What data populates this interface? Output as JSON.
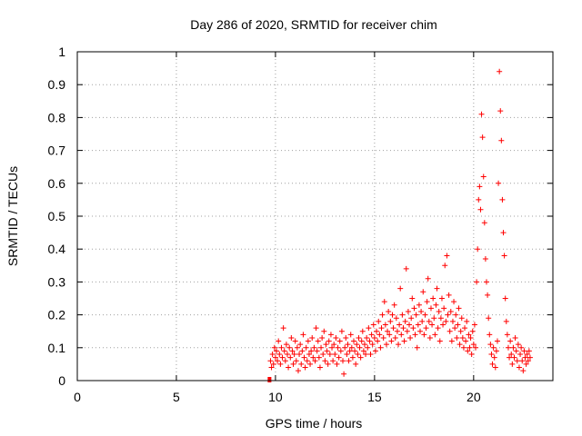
{
  "chart_data": {
    "type": "scatter",
    "title": "Day 286 of 2020, SRMTID for receiver chim",
    "xlabel": "GPS time / hours",
    "ylabel": "SRMTID / TECUs",
    "xlim": [
      0,
      24
    ],
    "ylim": [
      0,
      1
    ],
    "x_ticks": [
      0,
      5,
      10,
      15,
      20
    ],
    "x_tick_labels": [
      "0",
      "5",
      "10",
      "15",
      "20"
    ],
    "y_ticks": [
      0,
      0.1,
      0.2,
      0.3,
      0.4,
      0.5,
      0.6,
      0.7,
      0.8,
      0.9,
      1
    ],
    "y_tick_labels": [
      "0",
      "0.1",
      "0.2",
      "0.3",
      "0.4",
      "0.5",
      "0.6",
      "0.7",
      "0.8",
      "0.9",
      "1"
    ],
    "grid": true,
    "marker": "+",
    "color": "#ff0000",
    "zero_marker": {
      "x": 9.7,
      "y": 0,
      "color": "#ff0000"
    },
    "series": [
      {
        "name": "SRMTID",
        "points": [
          [
            9.75,
            0.06
          ],
          [
            9.8,
            0.04
          ],
          [
            9.85,
            0.08
          ],
          [
            9.9,
            0.05
          ],
          [
            9.95,
            0.1
          ],
          [
            10.0,
            0.07
          ],
          [
            10.05,
            0.09
          ],
          [
            10.1,
            0.06
          ],
          [
            10.15,
            0.12
          ],
          [
            10.2,
            0.08
          ],
          [
            10.25,
            0.05
          ],
          [
            10.3,
            0.1
          ],
          [
            10.35,
            0.07
          ],
          [
            10.4,
            0.16
          ],
          [
            10.45,
            0.09
          ],
          [
            10.5,
            0.06
          ],
          [
            10.55,
            0.11
          ],
          [
            10.6,
            0.08
          ],
          [
            10.65,
            0.04
          ],
          [
            10.7,
            0.1
          ],
          [
            10.75,
            0.07
          ],
          [
            10.8,
            0.13
          ],
          [
            10.85,
            0.09
          ],
          [
            10.9,
            0.05
          ],
          [
            10.95,
            0.08
          ],
          [
            11.0,
            0.12
          ],
          [
            11.05,
            0.06
          ],
          [
            11.1,
            0.1
          ],
          [
            11.15,
            0.03
          ],
          [
            11.2,
            0.08
          ],
          [
            11.25,
            0.11
          ],
          [
            11.3,
            0.05
          ],
          [
            11.35,
            0.09
          ],
          [
            11.4,
            0.14
          ],
          [
            11.45,
            0.07
          ],
          [
            11.5,
            0.04
          ],
          [
            11.55,
            0.1
          ],
          [
            11.6,
            0.06
          ],
          [
            11.65,
            0.12
          ],
          [
            11.7,
            0.08
          ],
          [
            11.75,
            0.05
          ],
          [
            11.8,
            0.09
          ],
          [
            11.85,
            0.13
          ],
          [
            11.9,
            0.07
          ],
          [
            11.95,
            0.1
          ],
          [
            12.0,
            0.06
          ],
          [
            12.05,
            0.16
          ],
          [
            12.1,
            0.09
          ],
          [
            12.15,
            0.12
          ],
          [
            12.2,
            0.07
          ],
          [
            12.25,
            0.04
          ],
          [
            12.3,
            0.1
          ],
          [
            12.35,
            0.13
          ],
          [
            12.4,
            0.08
          ],
          [
            12.45,
            0.15
          ],
          [
            12.5,
            0.06
          ],
          [
            12.55,
            0.11
          ],
          [
            12.6,
            0.09
          ],
          [
            12.65,
            0.05
          ],
          [
            12.7,
            0.12
          ],
          [
            12.75,
            0.08
          ],
          [
            12.8,
            0.14
          ],
          [
            12.85,
            0.1
          ],
          [
            12.9,
            0.06
          ],
          [
            12.95,
            0.11
          ],
          [
            13.0,
            0.08
          ],
          [
            13.05,
            0.13
          ],
          [
            13.1,
            0.05
          ],
          [
            13.15,
            0.1
          ],
          [
            13.2,
            0.07
          ],
          [
            13.25,
            0.12
          ],
          [
            13.3,
            0.09
          ],
          [
            13.35,
            0.15
          ],
          [
            13.4,
            0.06
          ],
          [
            13.45,
            0.02
          ],
          [
            13.5,
            0.1
          ],
          [
            13.55,
            0.13
          ],
          [
            13.6,
            0.08
          ],
          [
            13.65,
            0.11
          ],
          [
            13.7,
            0.06
          ],
          [
            13.75,
            0.09
          ],
          [
            13.8,
            0.14
          ],
          [
            13.85,
            0.1
          ],
          [
            13.9,
            0.07
          ],
          [
            13.95,
            0.12
          ],
          [
            14.0,
            0.09
          ],
          [
            14.05,
            0.05
          ],
          [
            14.1,
            0.11
          ],
          [
            14.15,
            0.08
          ],
          [
            14.2,
            0.13
          ],
          [
            14.25,
            0.1
          ],
          [
            14.3,
            0.07
          ],
          [
            14.35,
            0.12
          ],
          [
            14.4,
            0.15
          ],
          [
            14.45,
            0.09
          ],
          [
            14.5,
            0.11
          ],
          [
            14.55,
            0.08
          ],
          [
            14.6,
            0.13
          ],
          [
            14.65,
            0.1
          ],
          [
            14.7,
            0.16
          ],
          [
            14.75,
            0.12
          ],
          [
            14.8,
            0.08
          ],
          [
            14.85,
            0.14
          ],
          [
            14.9,
            0.11
          ],
          [
            14.95,
            0.17
          ],
          [
            15.0,
            0.13
          ],
          [
            15.05,
            0.09
          ],
          [
            15.1,
            0.15
          ],
          [
            15.15,
            0.12
          ],
          [
            15.2,
            0.18
          ],
          [
            15.25,
            0.14
          ],
          [
            15.3,
            0.1
          ],
          [
            15.35,
            0.16
          ],
          [
            15.4,
            0.2
          ],
          [
            15.45,
            0.13
          ],
          [
            15.5,
            0.24
          ],
          [
            15.55,
            0.17
          ],
          [
            15.6,
            0.11
          ],
          [
            15.65,
            0.15
          ],
          [
            15.7,
            0.21
          ],
          [
            15.75,
            0.14
          ],
          [
            15.8,
            0.18
          ],
          [
            15.85,
            0.12
          ],
          [
            15.9,
            0.2
          ],
          [
            15.95,
            0.16
          ],
          [
            16.0,
            0.23
          ],
          [
            16.05,
            0.13
          ],
          [
            16.1,
            0.19
          ],
          [
            16.15,
            0.15
          ],
          [
            16.2,
            0.11
          ],
          [
            16.25,
            0.17
          ],
          [
            16.3,
            0.28
          ],
          [
            16.35,
            0.14
          ],
          [
            16.4,
            0.2
          ],
          [
            16.45,
            0.16
          ],
          [
            16.5,
            0.12
          ],
          [
            16.55,
            0.18
          ],
          [
            16.6,
            0.34
          ],
          [
            16.65,
            0.15
          ],
          [
            16.7,
            0.21
          ],
          [
            16.75,
            0.17
          ],
          [
            16.8,
            0.13
          ],
          [
            16.85,
            0.19
          ],
          [
            16.9,
            0.25
          ],
          [
            16.95,
            0.16
          ],
          [
            17.0,
            0.22
          ],
          [
            17.05,
            0.14
          ],
          [
            17.1,
            0.2
          ],
          [
            17.15,
            0.1
          ],
          [
            17.2,
            0.17
          ],
          [
            17.25,
            0.23
          ],
          [
            17.3,
            0.15
          ],
          [
            17.35,
            0.21
          ],
          [
            17.4,
            0.18
          ],
          [
            17.45,
            0.27
          ],
          [
            17.5,
            0.14
          ],
          [
            17.55,
            0.2
          ],
          [
            17.6,
            0.16
          ],
          [
            17.65,
            0.24
          ],
          [
            17.7,
            0.31
          ],
          [
            17.75,
            0.18
          ],
          [
            17.8,
            0.13
          ],
          [
            17.85,
            0.22
          ],
          [
            17.9,
            0.17
          ],
          [
            17.95,
            0.25
          ],
          [
            18.0,
            0.19
          ],
          [
            18.05,
            0.14
          ],
          [
            18.1,
            0.23
          ],
          [
            18.15,
            0.28
          ],
          [
            18.2,
            0.16
          ],
          [
            18.25,
            0.21
          ],
          [
            18.3,
            0.12
          ],
          [
            18.35,
            0.19
          ],
          [
            18.4,
            0.25
          ],
          [
            18.45,
            0.17
          ],
          [
            18.5,
            0.22
          ],
          [
            18.55,
            0.35
          ],
          [
            18.6,
            0.18
          ],
          [
            18.65,
            0.38
          ],
          [
            18.7,
            0.2
          ],
          [
            18.75,
            0.26
          ],
          [
            18.8,
            0.15
          ],
          [
            18.85,
            0.21
          ],
          [
            18.9,
            0.12
          ],
          [
            18.95,
            0.18
          ],
          [
            19.0,
            0.24
          ],
          [
            19.05,
            0.16
          ],
          [
            19.1,
            0.2
          ],
          [
            19.15,
            0.13
          ],
          [
            19.2,
            0.17
          ],
          [
            19.25,
            0.22
          ],
          [
            19.3,
            0.11
          ],
          [
            19.35,
            0.15
          ],
          [
            19.4,
            0.19
          ],
          [
            19.45,
            0.13
          ],
          [
            19.5,
            0.1
          ],
          [
            19.55,
            0.16
          ],
          [
            19.6,
            0.12
          ],
          [
            19.65,
            0.18
          ],
          [
            19.7,
            0.09
          ],
          [
            19.75,
            0.14
          ],
          [
            19.8,
            0.1
          ],
          [
            19.85,
            0.13
          ],
          [
            19.9,
            0.08
          ],
          [
            19.95,
            0.15
          ],
          [
            20.0,
            0.11
          ],
          [
            20.05,
            0.17
          ],
          [
            20.1,
            0.1
          ],
          [
            20.15,
            0.3
          ],
          [
            20.2,
            0.4
          ],
          [
            20.25,
            0.55
          ],
          [
            20.3,
            0.59
          ],
          [
            20.35,
            0.52
          ],
          [
            20.4,
            0.81
          ],
          [
            20.45,
            0.74
          ],
          [
            20.5,
            0.62
          ],
          [
            20.55,
            0.48
          ],
          [
            20.6,
            0.37
          ],
          [
            20.65,
            0.3
          ],
          [
            20.7,
            0.26
          ],
          [
            20.75,
            0.19
          ],
          [
            20.8,
            0.14
          ],
          [
            20.85,
            0.11
          ],
          [
            20.9,
            0.08
          ],
          [
            20.95,
            0.05
          ],
          [
            21.0,
            0.1
          ],
          [
            21.05,
            0.07
          ],
          [
            21.1,
            0.04
          ],
          [
            21.15,
            0.09
          ],
          [
            21.2,
            0.12
          ],
          [
            21.25,
            0.6
          ],
          [
            21.3,
            0.94
          ],
          [
            21.35,
            0.82
          ],
          [
            21.4,
            0.73
          ],
          [
            21.45,
            0.55
          ],
          [
            21.5,
            0.45
          ],
          [
            21.55,
            0.38
          ],
          [
            21.6,
            0.25
          ],
          [
            21.65,
            0.18
          ],
          [
            21.7,
            0.14
          ],
          [
            21.75,
            0.1
          ],
          [
            21.8,
            0.07
          ],
          [
            21.85,
            0.12
          ],
          [
            21.9,
            0.08
          ],
          [
            21.95,
            0.05
          ],
          [
            22.0,
            0.1
          ],
          [
            22.05,
            0.07
          ],
          [
            22.1,
            0.13
          ],
          [
            22.15,
            0.09
          ],
          [
            22.2,
            0.06
          ],
          [
            22.25,
            0.11
          ],
          [
            22.3,
            0.04
          ],
          [
            22.35,
            0.08
          ],
          [
            22.4,
            0.1
          ],
          [
            22.45,
            0.06
          ],
          [
            22.5,
            0.03
          ],
          [
            22.55,
            0.09
          ],
          [
            22.6,
            0.07
          ],
          [
            22.65,
            0.05
          ],
          [
            22.7,
            0.08
          ],
          [
            22.75,
            0.06
          ],
          [
            22.8,
            0.09
          ],
          [
            22.85,
            0.07
          ]
        ]
      }
    ]
  }
}
